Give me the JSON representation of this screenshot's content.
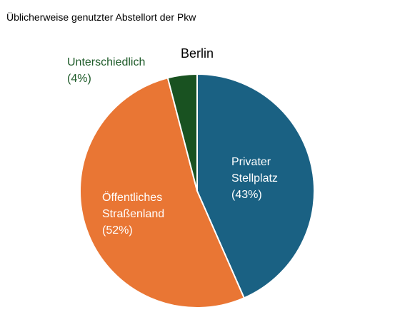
{
  "header": {
    "title": "Üblicherweise genutzter Abstellort der Pkw"
  },
  "chart_data": {
    "type": "pie",
    "title": "Berlin",
    "categories": [
      "Privater Stellplatz",
      "Öffentliches Straßenland",
      "Unterschiedlich"
    ],
    "values": [
      43,
      52,
      4
    ],
    "slices": [
      {
        "label_lines": [
          "Privater",
          "Stellplatz"
        ],
        "percent_label": "(43%)",
        "value": 43,
        "color": "#1a6183",
        "label_color": "#ffffff"
      },
      {
        "label_lines": [
          "Öffentliches",
          "Straßenland"
        ],
        "percent_label": "(52%)",
        "value": 52,
        "color": "#e97634",
        "label_color": "#ffffff"
      },
      {
        "label_lines": [
          "Unterschiedlich"
        ],
        "percent_label": "(4%)",
        "value": 4,
        "color": "#195221",
        "label_color": "#1d5a28"
      }
    ],
    "start_angle_deg": 0,
    "direction": "clockwise",
    "legend": "none",
    "data_labels": "category-and-percent"
  }
}
